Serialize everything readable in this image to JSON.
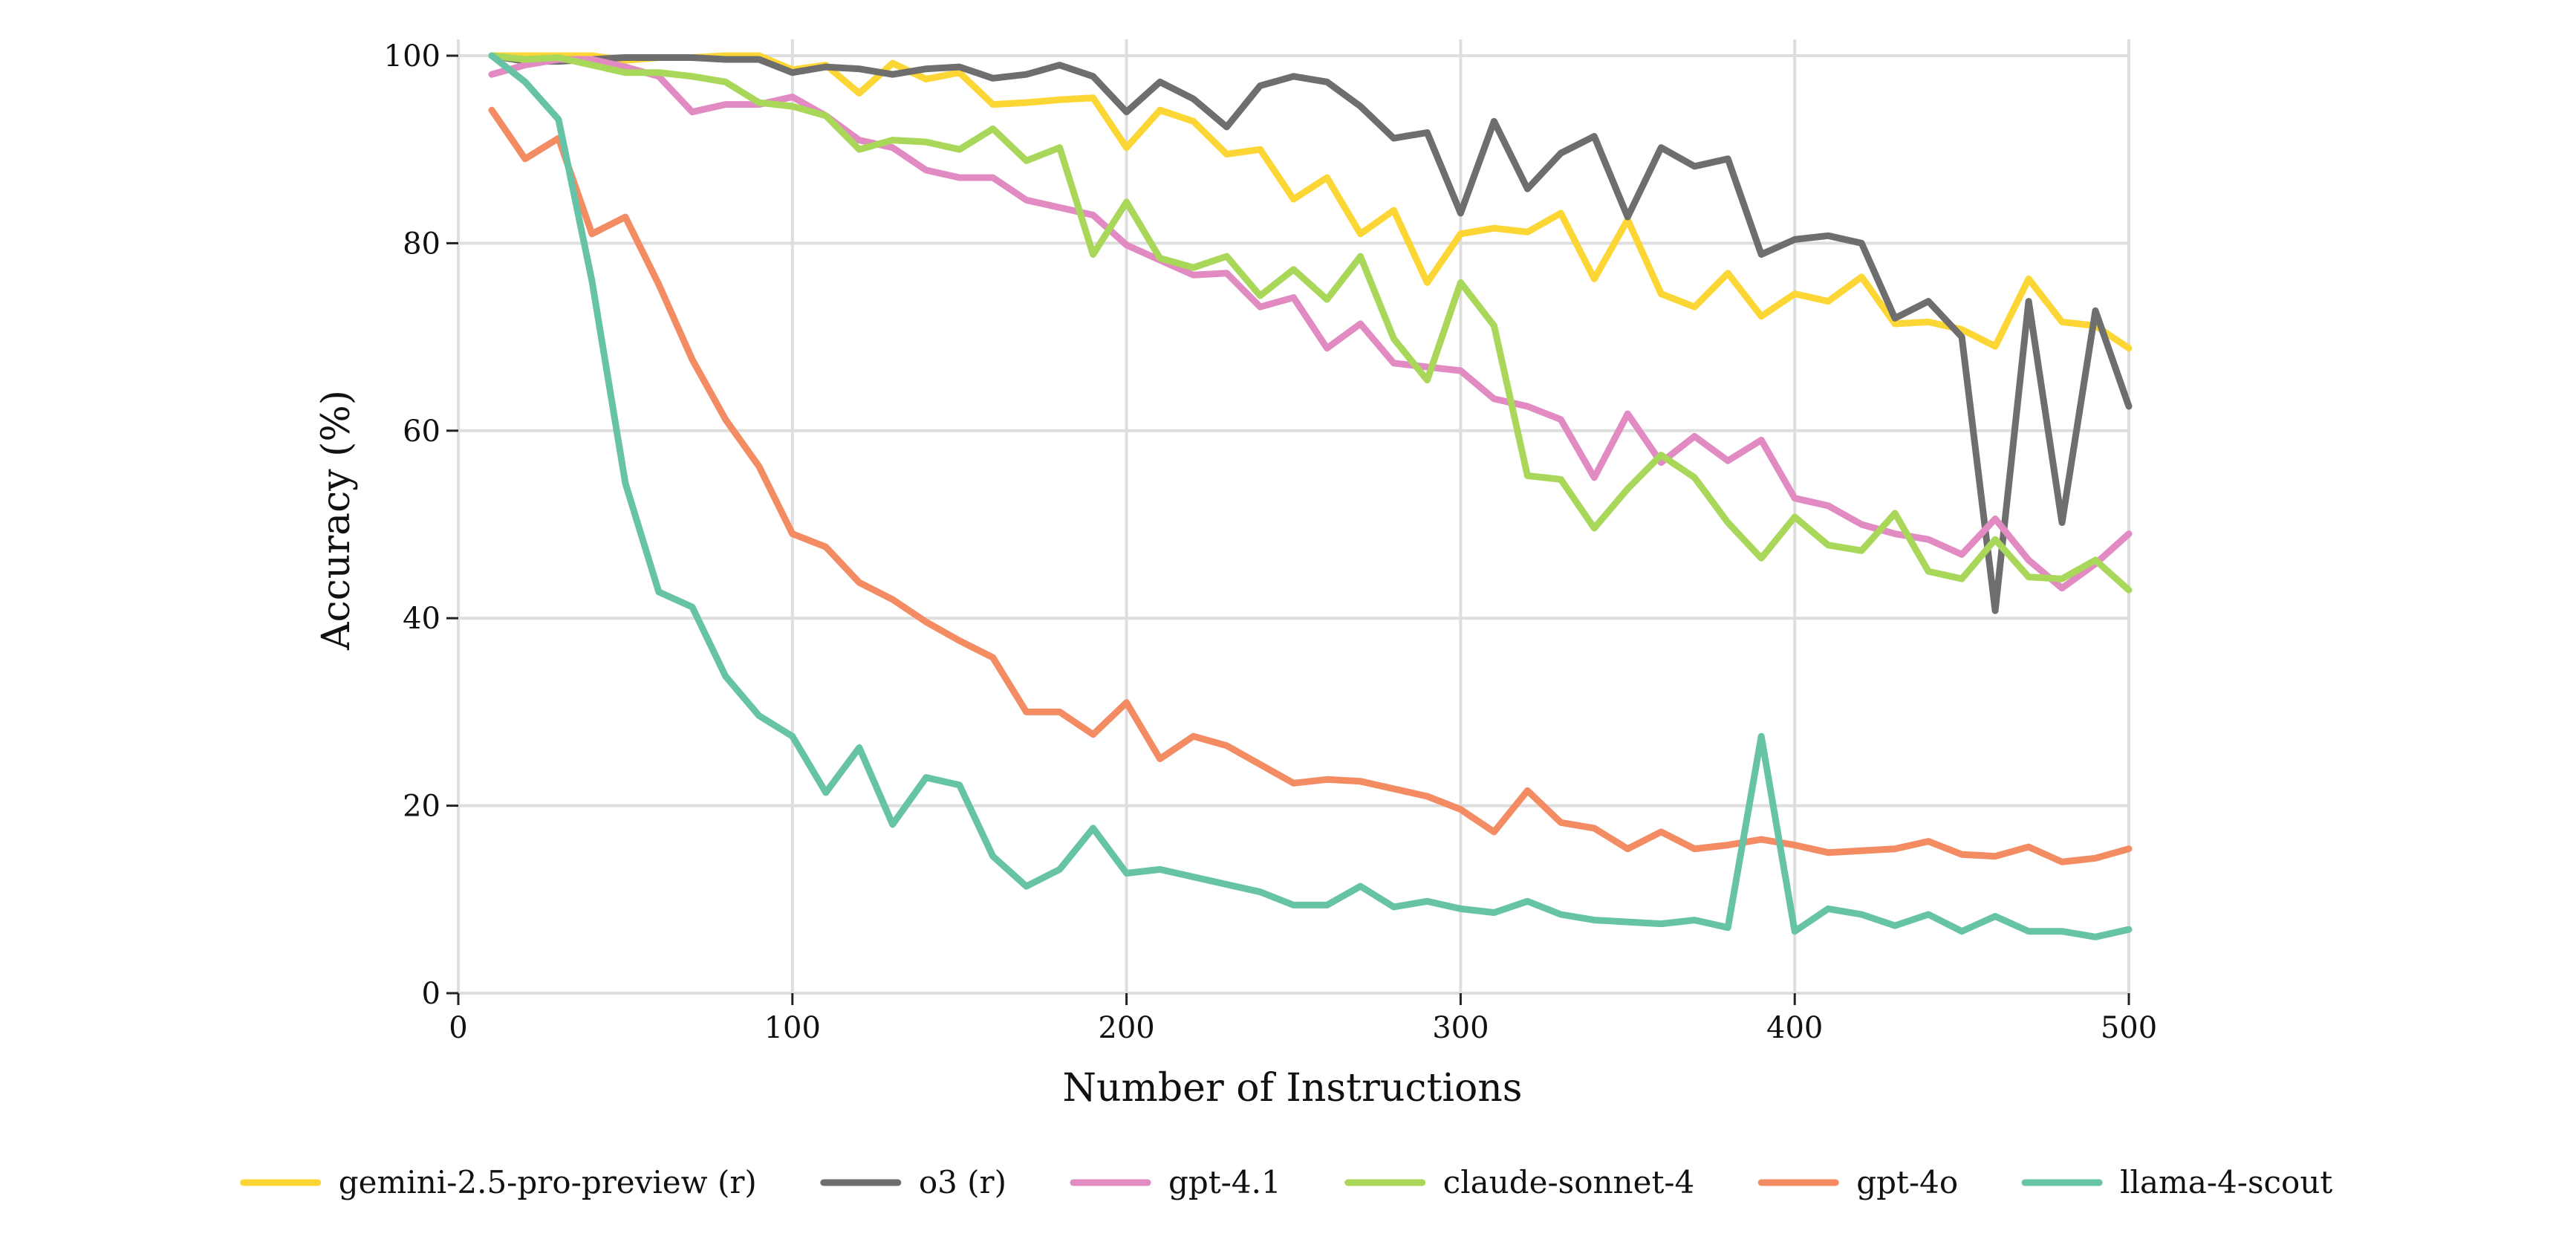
{
  "chart_data": {
    "type": "line",
    "title": "",
    "xlabel": "Number of Instructions",
    "ylabel": "Accuracy (%)",
    "xlim": [
      0,
      500
    ],
    "ylim": [
      0,
      100
    ],
    "xticks": [
      0,
      100,
      200,
      300,
      400,
      500
    ],
    "yticks": [
      0,
      20,
      40,
      60,
      80,
      100
    ],
    "grid": true,
    "legend_position": "bottom",
    "x": [
      10,
      20,
      30,
      40,
      50,
      60,
      70,
      80,
      90,
      100,
      110,
      120,
      130,
      140,
      150,
      160,
      170,
      180,
      190,
      200,
      210,
      220,
      230,
      240,
      250,
      260,
      270,
      280,
      290,
      300,
      310,
      320,
      330,
      340,
      350,
      360,
      370,
      380,
      390,
      400,
      410,
      420,
      430,
      440,
      450,
      460,
      470,
      480,
      490,
      500
    ],
    "series": [
      {
        "name": "gemini-2.5-pro-preview (r)",
        "color": "#fbd635",
        "values": [
          100,
          100,
          100,
          100,
          99.5,
          99.8,
          99.8,
          100,
          100,
          98.5,
          99,
          96,
          99.2,
          97.5,
          98.2,
          94.8,
          95,
          95.3,
          95.5,
          90.2,
          94.2,
          93,
          89.5,
          90,
          84.7,
          87,
          81,
          83.5,
          75.8,
          81,
          81.6,
          81.2,
          83.2,
          76.2,
          82.5,
          74.6,
          73.2,
          76.8,
          72.2,
          74.6,
          73.8,
          76.4,
          71.4,
          71.6,
          70.8,
          69,
          76.2,
          71.6,
          71.2,
          68.8
        ]
      },
      {
        "name": "o3 (r)",
        "color": "#6e6e6e",
        "values": [
          100,
          99.4,
          99.4,
          99.6,
          99.8,
          99.8,
          99.8,
          99.6,
          99.6,
          98.2,
          98.8,
          98.6,
          98,
          98.6,
          98.8,
          97.6,
          98,
          99,
          97.8,
          94,
          97.2,
          95.4,
          92.4,
          96.8,
          97.8,
          97.2,
          94.6,
          91.2,
          91.8,
          83.2,
          93,
          85.8,
          89.6,
          91.4,
          82.8,
          90.2,
          88.2,
          89,
          78.8,
          80.4,
          80.8,
          80,
          72,
          73.8,
          70,
          40.8,
          73.8,
          50.2,
          72.8,
          62.6
        ]
      },
      {
        "name": "gpt-4.1",
        "color": "#e28bc3",
        "values": [
          98,
          99,
          99.6,
          99.6,
          98.8,
          97.8,
          94,
          94.8,
          94.8,
          95.6,
          93.6,
          91,
          90.2,
          87.8,
          87,
          87,
          84.6,
          83.8,
          83,
          79.8,
          78.2,
          76.6,
          76.8,
          73.2,
          74.2,
          68.8,
          71.4,
          67.2,
          66.8,
          66.4,
          63.4,
          62.6,
          61.2,
          55,
          61.8,
          56.6,
          59.4,
          56.8,
          59,
          52.8,
          52,
          50,
          49,
          48.4,
          46.8,
          50.6,
          46.2,
          43.2,
          45.8,
          49
        ]
      },
      {
        "name": "claude-sonnet-4",
        "color": "#a8d75a",
        "values": [
          100,
          99.6,
          99.8,
          99,
          98.2,
          98.2,
          97.8,
          97.2,
          95,
          94.6,
          93.6,
          90,
          91,
          90.8,
          90,
          92.2,
          88.8,
          90.2,
          78.8,
          84.4,
          78.4,
          77.4,
          78.6,
          74.4,
          77.2,
          74,
          78.6,
          69.8,
          65.4,
          75.8,
          71.2,
          55.2,
          54.8,
          49.6,
          53.8,
          57.4,
          55,
          50.2,
          46.4,
          50.8,
          47.8,
          47.2,
          51.2,
          45,
          44.2,
          48.4,
          44.4,
          44.2,
          46.2,
          43
        ]
      },
      {
        "name": "gpt-4o",
        "color": "#f38b63",
        "values": [
          94.2,
          89,
          91.2,
          81,
          82.8,
          75.6,
          67.6,
          61.2,
          56.2,
          49,
          47.6,
          43.8,
          42,
          39.6,
          37.6,
          35.8,
          30,
          30,
          27.6,
          31,
          25,
          27.4,
          26.4,
          24.4,
          22.4,
          22.8,
          22.6,
          21.8,
          21,
          19.6,
          17.2,
          21.6,
          18.2,
          17.6,
          15.4,
          17.2,
          15.4,
          15.8,
          16.4,
          15.8,
          15,
          15.2,
          15.4,
          16.2,
          14.8,
          14.6,
          15.6,
          14,
          14.4,
          15.4
        ]
      },
      {
        "name": "llama-4-scout",
        "color": "#66c3a5",
        "values": [
          100,
          97.2,
          93.2,
          76,
          54.4,
          42.8,
          41.2,
          33.8,
          29.6,
          27.4,
          21.4,
          26.2,
          18,
          23,
          22.2,
          14.6,
          11.4,
          13.2,
          17.6,
          12.8,
          13.2,
          12.4,
          11.6,
          10.8,
          9.4,
          9.4,
          11.4,
          9.2,
          9.8,
          9,
          8.6,
          9.8,
          8.4,
          7.8,
          7.6,
          7.4,
          7.8,
          7,
          27.4,
          6.6,
          9,
          8.4,
          7.2,
          8.4,
          6.6,
          8.2,
          6.6,
          6.6,
          6,
          6.8
        ]
      }
    ]
  }
}
